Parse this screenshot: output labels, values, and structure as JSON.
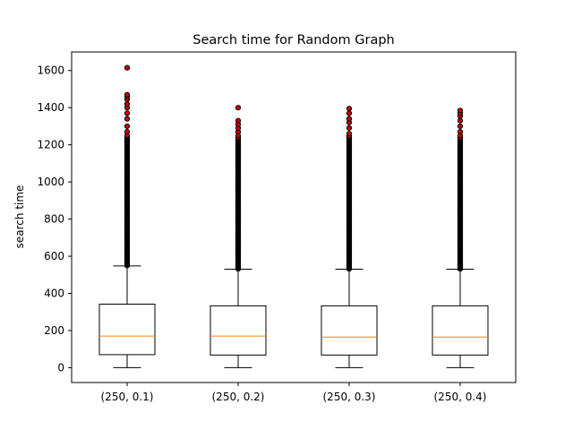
{
  "chart_data": {
    "type": "boxplot",
    "title": "Search time for Random Graph",
    "xlabel": "",
    "ylabel": "search time",
    "ylim": [
      -80,
      1700
    ],
    "yticks": [
      0,
      200,
      400,
      600,
      800,
      1000,
      1200,
      1400,
      1600
    ],
    "grid": false,
    "categories": [
      "(250, 0.1)",
      "(250, 0.2)",
      "(250, 0.3)",
      "(250, 0.4)"
    ],
    "boxes": [
      {
        "category": "(250, 0.1)",
        "whisker_low": 0,
        "q1": 70,
        "median": 170,
        "q3": 342,
        "whisker_high": 548,
        "outliers_dense_range": [
          550,
          1250
        ],
        "outliers": [
          1270,
          1300,
          1340,
          1370,
          1400,
          1420,
          1445,
          1460,
          1470,
          1615
        ]
      },
      {
        "category": "(250, 0.2)",
        "whisker_low": 0,
        "q1": 68,
        "median": 170,
        "q3": 333,
        "whisker_high": 530,
        "outliers_dense_range": [
          532,
          1240
        ],
        "outliers": [
          1250,
          1270,
          1290,
          1310,
          1330,
          1400
        ]
      },
      {
        "category": "(250, 0.3)",
        "whisker_low": 0,
        "q1": 68,
        "median": 165,
        "q3": 333,
        "whisker_high": 530,
        "outliers_dense_range": [
          532,
          1250
        ],
        "outliers": [
          1260,
          1290,
          1320,
          1340,
          1370,
          1395
        ]
      },
      {
        "category": "(250, 0.4)",
        "whisker_low": 0,
        "q1": 68,
        "median": 165,
        "q3": 333,
        "whisker_high": 530,
        "outliers_dense_range": [
          532,
          1240
        ],
        "outliers": [
          1250,
          1270,
          1300,
          1330,
          1355,
          1370,
          1385
        ]
      }
    ],
    "colors": {
      "box": "#000000",
      "median": "#ff7f0e",
      "outlier_fill": "#cc0000",
      "outlier_edge": "#000000"
    }
  }
}
